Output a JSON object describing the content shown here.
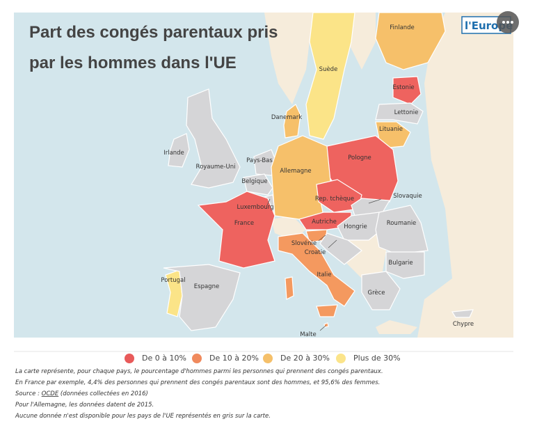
{
  "title": [
    "Part des congés parentaux pris",
    "par les hommes dans l'UE"
  ],
  "logo": "l'Europe",
  "sea_color": "#d3e6ec",
  "land_color": "#f6ecdb",
  "gray_color": "#d5d5d7",
  "countries": [
    {
      "label": "Finlande",
      "color": "#f6c06a"
    },
    {
      "label": "Suède",
      "color": "#fbe488"
    },
    {
      "label": "Estonie",
      "color": "#ee635f"
    },
    {
      "label": "Lettonie",
      "color": "#d5d5d7"
    },
    {
      "label": "Lituanie",
      "color": "#f6c06a"
    },
    {
      "label": "Danemark",
      "color": "#f6c06a"
    },
    {
      "label": "Irlande",
      "color": "#d5d5d7"
    },
    {
      "label": "Royaume-Uni",
      "color": "#d5d5d7"
    },
    {
      "label": "Pays-Bas",
      "color": "#d5d5d7"
    },
    {
      "label": "Pologne",
      "color": "#ee635f"
    },
    {
      "label": "Allemagne",
      "color": "#f6c06a"
    },
    {
      "label": "Belgique",
      "color": "#d5d5d7"
    },
    {
      "label": "Rep. tchèque",
      "color": "#ee635f"
    },
    {
      "label": "Slovaquie",
      "color": "#d5d5d7"
    },
    {
      "label": "Luxembourg",
      "color": "#d5d5d7"
    },
    {
      "label": "France",
      "color": "#ee635f"
    },
    {
      "label": "Autriche",
      "color": "#ee635f"
    },
    {
      "label": "Hongrie",
      "color": "#d5d5d7"
    },
    {
      "label": "Roumanie",
      "color": "#d5d5d7"
    },
    {
      "label": "Slovénie",
      "color": "#f4995f"
    },
    {
      "label": "Croatie",
      "color": "#d5d5d7"
    },
    {
      "label": "Bulgarie",
      "color": "#d5d5d7"
    },
    {
      "label": "Portugal",
      "color": "#fbe488"
    },
    {
      "label": "Espagne",
      "color": "#d5d5d7"
    },
    {
      "label": "Italie",
      "color": "#f4995f"
    },
    {
      "label": "Grèce",
      "color": "#d5d5d7"
    },
    {
      "label": "Malte",
      "color": "#f4995f"
    },
    {
      "label": "Chypre",
      "color": "#d5d5d7"
    }
  ],
  "legend": [
    {
      "label": "De 0 à 10%",
      "color": "#e85a5a"
    },
    {
      "label": "De 10 à 20%",
      "color": "#f08a5d"
    },
    {
      "label": "De 20 à 30%",
      "color": "#f5c06a"
    },
    {
      "label": "Plus de 30%",
      "color": "#fbe48a"
    }
  ],
  "notes": {
    "line1": "La carte représente, pour chaque pays, le pourcentage d'hommes parmi les personnes qui prennent des congés parentaux.",
    "line2": "En France par exemple, 4,4% des personnes qui prennent des congés parentaux sont des hommes, et 95,6% des femmes.",
    "source_prefix": "Source : ",
    "source_link": "OCDE",
    "source_suffix": " (données collectées en 2016)",
    "line4": "Pour l'Allemagne, les données datent de 2015.",
    "line5": "Aucune donnée n'est disponible pour les pays de l'UE représentés en gris sur la carte."
  }
}
